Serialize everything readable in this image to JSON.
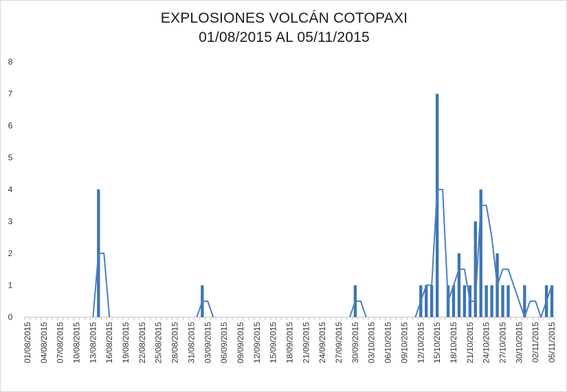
{
  "chart_data": {
    "type": "bar",
    "title": "EXPLOSIONES  VOLCÁN COTOPAXI",
    "subtitle": "01/08/2015 AL 05/11/2015",
    "xlabel": "",
    "ylabel": "",
    "ylim": [
      0,
      8
    ],
    "yticks": [
      "0",
      "1",
      "2",
      "3",
      "4",
      "5",
      "6",
      "7",
      "8"
    ],
    "grid": false,
    "legend": "none",
    "start_date": "2015-08-01",
    "end_date": "2015-11-05",
    "x_tick_labels": [
      "01/08/2015",
      "04/08/2015",
      "07/08/2015",
      "10/08/2015",
      "13/08/2015",
      "16/08/2015",
      "19/08/2015",
      "22/08/2015",
      "25/08/2015",
      "28/08/2015",
      "31/08/2015",
      "03/09/2015",
      "06/09/2015",
      "09/09/2015",
      "12/09/2015",
      "15/09/2015",
      "18/09/2015",
      "21/09/2015",
      "24/09/2015",
      "27/09/2015",
      "30/09/2015",
      "03/10/2015",
      "06/10/2015",
      "09/10/2015",
      "12/10/2015",
      "15/10/2015",
      "18/10/2015",
      "21/10/2015",
      "24/10/2015",
      "27/10/2015",
      "30/10/2015",
      "02/11/2015",
      "05/11/2015"
    ],
    "series": [
      {
        "type": "bar",
        "color": "#3e75b2",
        "x": [
          "14/08/2015",
          "02/09/2015",
          "30/09/2015",
          "12/10/2015",
          "13/10/2015",
          "14/10/2015",
          "15/10/2015",
          "17/10/2015",
          "18/10/2015",
          "19/10/2015",
          "20/10/2015",
          "21/10/2015",
          "22/10/2015",
          "23/10/2015",
          "24/10/2015",
          "25/10/2015",
          "26/10/2015",
          "27/10/2015",
          "28/10/2015",
          "31/10/2015",
          "04/11/2015",
          "05/11/2015"
        ],
        "values": [
          4,
          1,
          1,
          1,
          1,
          1,
          7,
          1,
          1,
          2,
          1,
          1,
          3,
          4,
          1,
          1,
          2,
          1,
          1,
          1,
          1,
          1
        ]
      },
      {
        "type": "line",
        "color": "#4a7fbe",
        "x": [
          "13/08/2015",
          "14/08/2015",
          "15/08/2015",
          "16/08/2015",
          "01/09/2015",
          "02/09/2015",
          "03/09/2015",
          "04/09/2015",
          "29/09/2015",
          "30/09/2015",
          "01/10/2015",
          "02/10/2015",
          "11/10/2015",
          "12/10/2015",
          "13/10/2015",
          "14/10/2015",
          "15/10/2015",
          "16/10/2015",
          "17/10/2015",
          "18/10/2015",
          "19/10/2015",
          "20/10/2015",
          "21/10/2015",
          "22/10/2015",
          "23/10/2015",
          "24/10/2015",
          "25/10/2015",
          "26/10/2015",
          "27/10/2015",
          "28/10/2015",
          "29/10/2015",
          "30/10/2015",
          "31/10/2015",
          "01/11/2015",
          "02/11/2015",
          "03/11/2015",
          "04/11/2015",
          "05/11/2015"
        ],
        "values": [
          0,
          2,
          2,
          0,
          0,
          0.5,
          0.5,
          0,
          0,
          0.5,
          0.5,
          0,
          0,
          0.5,
          1,
          1,
          4,
          4,
          0.5,
          1,
          1.5,
          1.5,
          0.5,
          0.5,
          3.5,
          3.5,
          2.5,
          1,
          1.5,
          1.5,
          1,
          0.5,
          0,
          0.5,
          0.5,
          0,
          0.5,
          1
        ]
      }
    ]
  }
}
